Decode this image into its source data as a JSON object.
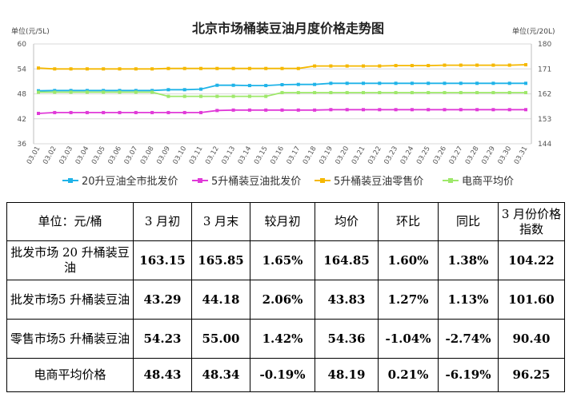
{
  "chart_data": {
    "type": "line",
    "title": "北京市场桶装豆油月度价格走势图",
    "ylabel_left": "单位(元/5L)",
    "ylabel_right": "单位(元/20L)",
    "ylim_left": [
      36,
      60
    ],
    "yticks_left": [
      "36",
      "42",
      "48",
      "54",
      "60"
    ],
    "ylim_right": [
      144,
      180
    ],
    "yticks_right": [
      "144",
      "153",
      "162",
      "171",
      "180"
    ],
    "grid": true,
    "legend_position": "bottom",
    "categories": [
      "03.01",
      "03.02",
      "03.03",
      "03.04",
      "03.05",
      "03.06",
      "03.07",
      "03.08",
      "03.09",
      "03.10",
      "03.11",
      "03.12",
      "03.13",
      "03.14",
      "03.15",
      "03.16",
      "03.17",
      "03.18",
      "03.19",
      "03.20",
      "03.21",
      "03.22",
      "03.23",
      "03.24",
      "03.25",
      "03.26",
      "03.27",
      "03.28",
      "03.29",
      "03.30",
      "03.31"
    ],
    "series": [
      {
        "name": "20升豆油全市批发价",
        "axis": "right",
        "color": "#1fb3e8",
        "values": [
          163.1,
          163.2,
          163.2,
          163.2,
          163.2,
          163.2,
          163.2,
          163.2,
          163.5,
          163.5,
          163.7,
          165.1,
          165.1,
          165.0,
          165.0,
          165.3,
          165.4,
          165.4,
          165.8,
          165.8,
          165.8,
          165.8,
          165.8,
          165.8,
          165.8,
          165.8,
          165.8,
          165.8,
          165.8,
          165.8,
          165.8
        ]
      },
      {
        "name": "5升桶装豆油批发价",
        "axis": "left",
        "color": "#e03ad8",
        "values": [
          43.3,
          43.5,
          43.5,
          43.5,
          43.5,
          43.5,
          43.5,
          43.5,
          43.5,
          43.5,
          43.5,
          44.0,
          44.1,
          44.1,
          44.1,
          44.1,
          44.1,
          44.1,
          44.2,
          44.2,
          44.2,
          44.2,
          44.2,
          44.2,
          44.2,
          44.2,
          44.2,
          44.2,
          44.2,
          44.2,
          44.2
        ]
      },
      {
        "name": "5升桶装豆油零售价",
        "axis": "left",
        "color": "#f5b800",
        "values": [
          54.2,
          54.0,
          54.0,
          54.0,
          54.0,
          54.0,
          54.0,
          54.0,
          54.1,
          54.1,
          54.1,
          54.1,
          54.1,
          54.1,
          54.1,
          54.1,
          54.1,
          54.7,
          54.7,
          54.7,
          54.7,
          54.7,
          54.8,
          54.8,
          54.8,
          54.9,
          54.9,
          54.9,
          54.9,
          54.9,
          55.0
        ]
      },
      {
        "name": "电商平均价",
        "axis": "left",
        "color": "#9ee86a",
        "values": [
          48.4,
          48.4,
          48.4,
          48.4,
          48.4,
          48.4,
          48.4,
          48.4,
          47.4,
          47.4,
          47.4,
          47.4,
          47.4,
          47.4,
          47.4,
          48.3,
          48.3,
          48.3,
          48.3,
          48.3,
          48.3,
          48.3,
          48.3,
          48.3,
          48.3,
          48.3,
          48.3,
          48.3,
          48.3,
          48.3,
          48.3
        ]
      }
    ]
  },
  "table": {
    "headers": [
      "单位：元/桶",
      "3 月初",
      "3 月末",
      "较月初",
      "均价",
      "环比",
      "同比",
      "3 月份价格指数"
    ],
    "rows": [
      [
        "批发市场 20 升桶装豆油",
        "163.15",
        "165.85",
        "1.65%",
        "164.85",
        "1.60%",
        "1.38%",
        "104.22"
      ],
      [
        "批发市场5 升桶装豆油",
        "43.29",
        "44.18",
        "2.06%",
        "43.83",
        "1.27%",
        "1.13%",
        "101.60"
      ],
      [
        "零售市场5 升桶装豆油",
        "54.23",
        "55.00",
        "1.42%",
        "54.36",
        "-1.04%",
        "-2.74%",
        "90.40"
      ],
      [
        "电商平均价格",
        "48.43",
        "48.34",
        "-0.19%",
        "48.19",
        "0.21%",
        "-6.19%",
        "96.25"
      ]
    ]
  }
}
